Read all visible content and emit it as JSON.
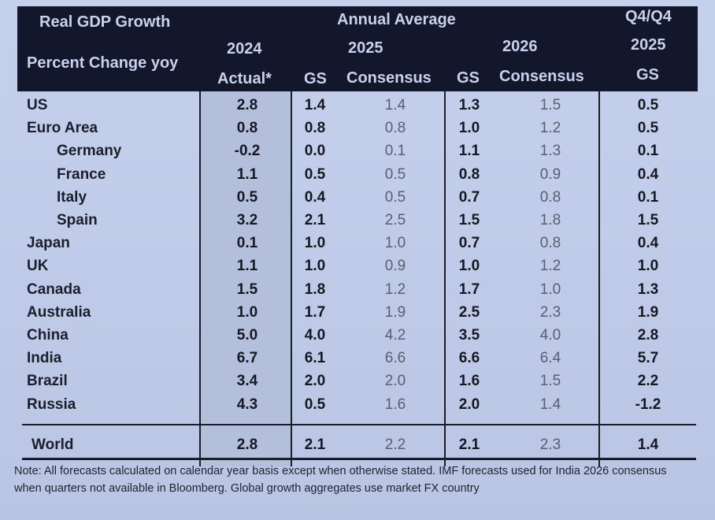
{
  "header": {
    "title": "Real GDP Growth",
    "subtitle": "Percent Change yoy",
    "annual_average": "Annual Average",
    "q4q4": "Q4/Q4",
    "years": {
      "y2024": "2024",
      "y2025": "2025",
      "y2026": "2026",
      "q4_2025": "2025"
    },
    "columns": {
      "actual": "Actual*",
      "gs_2025": "GS",
      "consensus_2025": "Consensus",
      "gs_2026": "GS",
      "consensus_2026": "Consensus",
      "gs_q4": "GS"
    }
  },
  "rows": [
    {
      "country": "US",
      "indent": false,
      "actual_2024": "2.8",
      "gs_2025": "1.4",
      "cons_2025": "1.4",
      "gs_2026": "1.3",
      "cons_2026": "1.5",
      "q4_gs_2025": "0.5"
    },
    {
      "country": "Euro Area",
      "indent": false,
      "actual_2024": "0.8",
      "gs_2025": "0.8",
      "cons_2025": "0.8",
      "gs_2026": "1.0",
      "cons_2026": "1.2",
      "q4_gs_2025": "0.5"
    },
    {
      "country": "Germany",
      "indent": true,
      "actual_2024": "-0.2",
      "gs_2025": "0.0",
      "cons_2025": "0.1",
      "gs_2026": "1.1",
      "cons_2026": "1.3",
      "q4_gs_2025": "0.1"
    },
    {
      "country": "France",
      "indent": true,
      "actual_2024": "1.1",
      "gs_2025": "0.5",
      "cons_2025": "0.5",
      "gs_2026": "0.8",
      "cons_2026": "0.9",
      "q4_gs_2025": "0.4"
    },
    {
      "country": "Italy",
      "indent": true,
      "actual_2024": "0.5",
      "gs_2025": "0.4",
      "cons_2025": "0.5",
      "gs_2026": "0.7",
      "cons_2026": "0.8",
      "q4_gs_2025": "0.1"
    },
    {
      "country": "Spain",
      "indent": true,
      "actual_2024": "3.2",
      "gs_2025": "2.1",
      "cons_2025": "2.5",
      "gs_2026": "1.5",
      "cons_2026": "1.8",
      "q4_gs_2025": "1.5"
    },
    {
      "country": "Japan",
      "indent": false,
      "actual_2024": "0.1",
      "gs_2025": "1.0",
      "cons_2025": "1.0",
      "gs_2026": "0.7",
      "cons_2026": "0.8",
      "q4_gs_2025": "0.4"
    },
    {
      "country": "UK",
      "indent": false,
      "actual_2024": "1.1",
      "gs_2025": "1.0",
      "cons_2025": "0.9",
      "gs_2026": "1.0",
      "cons_2026": "1.2",
      "q4_gs_2025": "1.0"
    },
    {
      "country": "Canada",
      "indent": false,
      "actual_2024": "1.5",
      "gs_2025": "1.8",
      "cons_2025": "1.2",
      "gs_2026": "1.7",
      "cons_2026": "1.0",
      "q4_gs_2025": "1.3"
    },
    {
      "country": "Australia",
      "indent": false,
      "actual_2024": "1.0",
      "gs_2025": "1.7",
      "cons_2025": "1.9",
      "gs_2026": "2.5",
      "cons_2026": "2.3",
      "q4_gs_2025": "1.9"
    },
    {
      "country": "China",
      "indent": false,
      "actual_2024": "5.0",
      "gs_2025": "4.0",
      "cons_2025": "4.2",
      "gs_2026": "3.5",
      "cons_2026": "4.0",
      "q4_gs_2025": "2.8"
    },
    {
      "country": "India",
      "indent": false,
      "actual_2024": "6.7",
      "gs_2025": "6.1",
      "cons_2025": "6.6",
      "gs_2026": "6.6",
      "cons_2026": "6.4",
      "q4_gs_2025": "5.7"
    },
    {
      "country": "Brazil",
      "indent": false,
      "actual_2024": "3.4",
      "gs_2025": "2.0",
      "cons_2025": "2.0",
      "gs_2026": "1.6",
      "cons_2026": "1.5",
      "q4_gs_2025": "2.2"
    },
    {
      "country": "Russia",
      "indent": false,
      "actual_2024": "4.3",
      "gs_2025": "0.5",
      "cons_2025": "1.6",
      "gs_2026": "2.0",
      "cons_2026": "1.4",
      "q4_gs_2025": "-1.2"
    }
  ],
  "world": {
    "country": "World",
    "actual_2024": "2.8",
    "gs_2025": "2.1",
    "cons_2025": "2.2",
    "gs_2026": "2.1",
    "cons_2026": "2.3",
    "q4_gs_2025": "1.4"
  },
  "note": "Note: All forecasts calculated on calendar year basis except when otherwise stated. IMF forecasts used for India 2026 consensus when quarters not available in Bloomberg. Global growth aggregates use market FX country"
}
